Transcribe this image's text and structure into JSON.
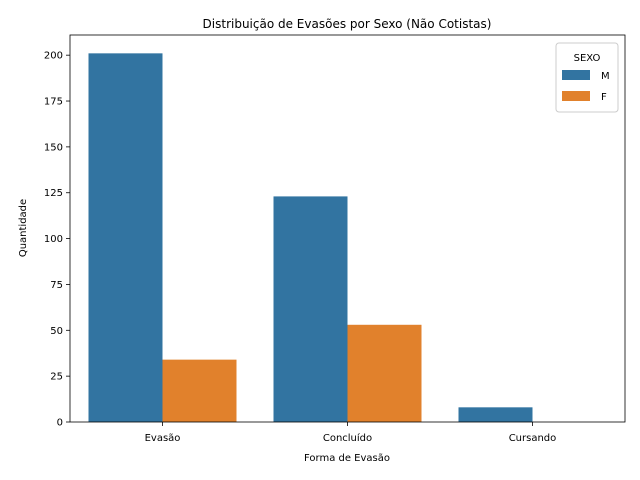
{
  "chart_data": {
    "type": "bar",
    "title": "Distribuição de Evasões por Sexo (Não Cotistas)",
    "xlabel": "Forma de Evasão",
    "ylabel": "Quantidade",
    "categories": [
      "Evasão",
      "Concluído",
      "Cursando"
    ],
    "series": [
      {
        "name": "M",
        "values": [
          201,
          123,
          8
        ],
        "color": "#3274a1"
      },
      {
        "name": "F",
        "values": [
          34,
          53,
          0
        ],
        "color": "#e1812c"
      }
    ],
    "ylim": [
      0,
      211
    ],
    "yticks": [
      0,
      25,
      50,
      75,
      100,
      125,
      150,
      175,
      200
    ],
    "legend": {
      "title": "SEXO",
      "position": "top-right"
    },
    "grid": false
  }
}
